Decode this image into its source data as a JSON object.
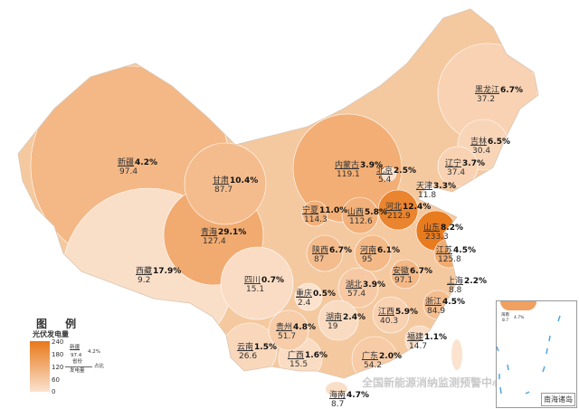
{
  "legend": {
    "title": "图 例",
    "subtitle": "光伏发电量",
    "ticks": [
      "240",
      "180",
      "120",
      "60",
      "0"
    ],
    "range": [
      0,
      240
    ],
    "color_low": "#fbe3cf",
    "color_high": "#e8781a",
    "sample_name": "新疆",
    "sample_value": "97.4",
    "sample_pct": "4.2%",
    "key_name": "省份",
    "key_value": "发电量",
    "key_pct": "占比"
  },
  "inset": {
    "label": "南海诸岛",
    "hainan_name": "海南",
    "hainan_value": "8.7",
    "hainan_pct": "4.7%"
  },
  "watermark": "全国新能源消纳监测预警中心",
  "provinces": [
    {
      "name": "新疆",
      "value": 97.4,
      "pct": "4.2%"
    },
    {
      "name": "西藏",
      "value": 9.2,
      "pct": "17.9%"
    },
    {
      "name": "青海",
      "value": 127.4,
      "pct": "29.1%"
    },
    {
      "name": "甘肃",
      "value": 87.7,
      "pct": "10.4%"
    },
    {
      "name": "内蒙古",
      "value": 119.1,
      "pct": "3.9%"
    },
    {
      "name": "黑龙江",
      "value": 37.2,
      "pct": "6.7%"
    },
    {
      "name": "吉林",
      "value": 30.4,
      "pct": "6.5%"
    },
    {
      "name": "辽宁",
      "value": 37.4,
      "pct": "3.7%"
    },
    {
      "name": "北京",
      "value": 5.4,
      "pct": "2.5%"
    },
    {
      "name": "天津",
      "value": 11.8,
      "pct": "3.3%"
    },
    {
      "name": "河北",
      "value": 212.9,
      "pct": "12.4%"
    },
    {
      "name": "山西",
      "value": 112.6,
      "pct": "5.8%"
    },
    {
      "name": "宁夏",
      "value": 114.3,
      "pct": "11.0%"
    },
    {
      "name": "山东",
      "value": 233.3,
      "pct": "8.2%"
    },
    {
      "name": "陕西",
      "value": 87,
      "pct": "6.7%"
    },
    {
      "name": "河南",
      "value": 95,
      "pct": "6.1%"
    },
    {
      "name": "江苏",
      "value": 125.8,
      "pct": "4.5%"
    },
    {
      "name": "安徽",
      "value": 97.1,
      "pct": "6.7%"
    },
    {
      "name": "上海",
      "value": 8.8,
      "pct": "2.2%"
    },
    {
      "name": "湖北",
      "value": 57.4,
      "pct": "3.9%"
    },
    {
      "name": "四川",
      "value": 15.1,
      "pct": "0.7%"
    },
    {
      "name": "重庆",
      "value": 2.4,
      "pct": "0.5%"
    },
    {
      "name": "浙江",
      "value": 84.9,
      "pct": "4.5%"
    },
    {
      "name": "湖南",
      "value": 19,
      "pct": "2.4%"
    },
    {
      "name": "江西",
      "value": 40.3,
      "pct": "5.9%"
    },
    {
      "name": "贵州",
      "value": 51.7,
      "pct": "4.8%"
    },
    {
      "name": "福建",
      "value": 14.7,
      "pct": "1.1%"
    },
    {
      "name": "云南",
      "value": 26.6,
      "pct": "1.5%"
    },
    {
      "name": "广西",
      "value": 15.5,
      "pct": "1.6%"
    },
    {
      "name": "广东",
      "value": 54.2,
      "pct": "2.0%"
    },
    {
      "name": "海南",
      "value": 8.7,
      "pct": "4.7%"
    }
  ]
}
